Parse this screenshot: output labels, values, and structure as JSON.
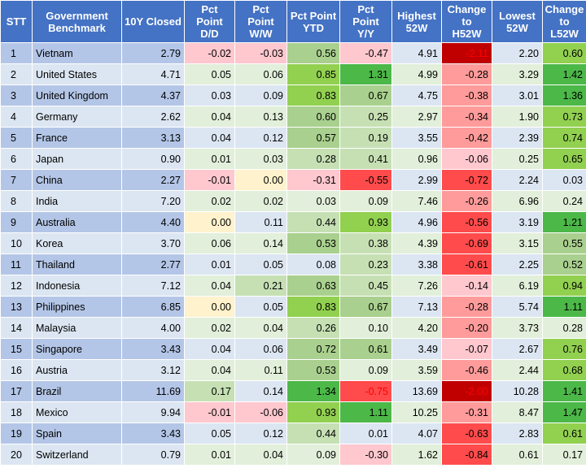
{
  "headers": [
    "STT",
    "Government\nBenchmark",
    "10Y Closed",
    "Pct\nPoint\nD/D",
    "Pct\nPoint\nW/W",
    "Pct Point\nYTD",
    "Pct\nPoint\nY/Y",
    "Highest\n52W",
    "Change\nto\nH52W",
    "Lowest\n52W",
    "Change\nto\nL52W"
  ],
  "rows": [
    [
      "1",
      "Vietnam",
      "2.79",
      "-0.02",
      "-0.03",
      "0.56",
      "-0.47",
      "4.91",
      "-2.11",
      "2.20",
      "0.60"
    ],
    [
      "2",
      "United States",
      "4.71",
      "0.05",
      "0.06",
      "0.85",
      "1.31",
      "4.99",
      "-0.28",
      "3.29",
      "1.42"
    ],
    [
      "3",
      "United Kingdom",
      "4.37",
      "0.03",
      "0.09",
      "0.83",
      "0.67",
      "4.75",
      "-0.38",
      "3.01",
      "1.36"
    ],
    [
      "4",
      "Germany",
      "2.62",
      "0.04",
      "0.13",
      "0.60",
      "0.25",
      "2.97",
      "-0.34",
      "1.90",
      "0.73"
    ],
    [
      "5",
      "France",
      "3.13",
      "0.04",
      "0.12",
      "0.57",
      "0.19",
      "3.55",
      "-0.42",
      "2.39",
      "0.74"
    ],
    [
      "6",
      "Japan",
      "0.90",
      "0.01",
      "0.03",
      "0.28",
      "0.41",
      "0.96",
      "-0.06",
      "0.25",
      "0.65"
    ],
    [
      "7",
      "China",
      "2.27",
      "-0.01",
      "0.00",
      "-0.31",
      "-0.55",
      "2.99",
      "-0.72",
      "2.24",
      "0.03"
    ],
    [
      "8",
      "India",
      "7.20",
      "0.02",
      "0.02",
      "0.03",
      "0.09",
      "7.46",
      "-0.26",
      "6.96",
      "0.24"
    ],
    [
      "9",
      "Australia",
      "4.40",
      "0.00",
      "0.11",
      "0.44",
      "0.93",
      "4.96",
      "-0.56",
      "3.19",
      "1.21"
    ],
    [
      "10",
      "Korea",
      "3.70",
      "0.06",
      "0.14",
      "0.53",
      "0.38",
      "4.39",
      "-0.69",
      "3.15",
      "0.55"
    ],
    [
      "11",
      "Thailand",
      "2.77",
      "0.01",
      "0.05",
      "0.08",
      "0.23",
      "3.38",
      "-0.61",
      "2.25",
      "0.52"
    ],
    [
      "12",
      "Indonesia",
      "7.12",
      "0.04",
      "0.21",
      "0.63",
      "0.45",
      "7.26",
      "-0.14",
      "6.19",
      "0.94"
    ],
    [
      "13",
      "Philippines",
      "6.85",
      "0.00",
      "0.05",
      "0.83",
      "0.67",
      "7.13",
      "-0.28",
      "5.74",
      "1.11"
    ],
    [
      "14",
      "Malaysia",
      "4.00",
      "0.02",
      "0.04",
      "0.26",
      "0.10",
      "4.20",
      "-0.20",
      "3.73",
      "0.28"
    ],
    [
      "15",
      "Singapore",
      "3.43",
      "0.04",
      "0.06",
      "0.72",
      "0.61",
      "3.49",
      "-0.07",
      "2.67",
      "0.76"
    ],
    [
      "16",
      "Austria",
      "3.12",
      "0.04",
      "0.11",
      "0.53",
      "0.09",
      "3.59",
      "-0.46",
      "2.44",
      "0.68"
    ],
    [
      "17",
      "Brazil",
      "11.69",
      "0.17",
      "0.14",
      "1.34",
      "-0.75",
      "13.69",
      "-2.00",
      "10.28",
      "1.41"
    ],
    [
      "18",
      "Mexico",
      "9.94",
      "-0.01",
      "-0.06",
      "0.93",
      "1.11",
      "10.25",
      "-0.31",
      "8.47",
      "1.47"
    ],
    [
      "19",
      "Spain",
      "3.43",
      "0.05",
      "0.12",
      "0.44",
      "0.01",
      "4.07",
      "-0.63",
      "2.83",
      "0.61"
    ],
    [
      "20",
      "Switzerland",
      "0.79",
      "0.01",
      "0.04",
      "0.09",
      "-0.30",
      "1.62",
      "-0.84",
      "0.61",
      "0.17"
    ]
  ],
  "colors": {
    "header_bg": "#4472c4",
    "band_dark": "#b4c6e7",
    "band_light": "#dce6f2",
    "pos_light": "#e2efda",
    "pos_mid": "#c6e0b4",
    "pos_strong": "#a9d08e",
    "pos_bright": "#92d050",
    "pos_deep": "#4cb848",
    "neg_light": "#ffc7ce",
    "neg_mid": "#ff9b9b",
    "neg_strong": "#ff4b4b",
    "neg_deep": "#c00000",
    "zero": "#fff2cc"
  }
}
